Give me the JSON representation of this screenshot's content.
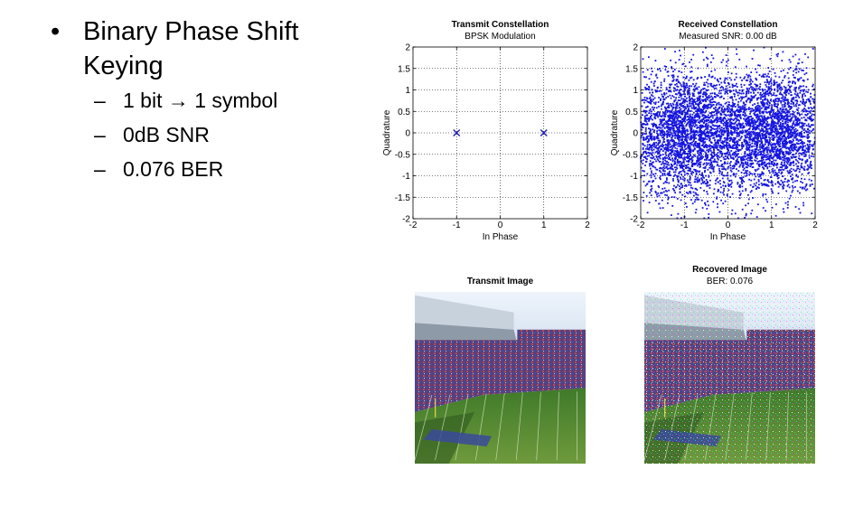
{
  "slide": {
    "main_bullet": "Binary Phase Shift Keying",
    "sub_bullets": [
      "1 bit → 1 symbol",
      "0dB SNR",
      "0.076 BER"
    ]
  },
  "chart_data": [
    {
      "type": "scatter",
      "title": "Transmit Constellation",
      "subtitle": "BPSK Modulation",
      "xlabel": "In Phase",
      "ylabel": "Quadrature",
      "xlim": [
        -2,
        2
      ],
      "ylim": [
        -2,
        2
      ],
      "x_ticks": [
        -2,
        -1,
        0,
        1,
        2
      ],
      "y_ticks": [
        2,
        1.5,
        1,
        0.5,
        0,
        -0.5,
        -1,
        -1.5,
        -2
      ],
      "grid": true,
      "marker": "x",
      "color": "#1f1fb4",
      "points": [
        [
          -1,
          0
        ],
        [
          1,
          0
        ]
      ]
    },
    {
      "type": "scatter",
      "title": "Received Constellation",
      "subtitle": "Measured SNR: 0.00 dB",
      "xlabel": "In Phase",
      "ylabel": "Quadrature",
      "xlim": [
        -2,
        2
      ],
      "ylim": [
        -2,
        2
      ],
      "x_ticks": [
        -2,
        -1,
        0,
        1,
        2
      ],
      "y_ticks": [
        2,
        1.5,
        1,
        0.5,
        0,
        -0.5,
        -1,
        -1.5,
        -2
      ],
      "grid": true,
      "marker": "dot",
      "color": "#1515e0",
      "symbols": [
        -1,
        1
      ],
      "noise_std": 0.71
    }
  ],
  "images": [
    {
      "title": "Transmit Image",
      "subtitle": "",
      "kind": "stadium-photo"
    },
    {
      "title": "Recovered Image",
      "subtitle": "BER: 0.076",
      "kind": "stadium-photo-noisy"
    }
  ]
}
